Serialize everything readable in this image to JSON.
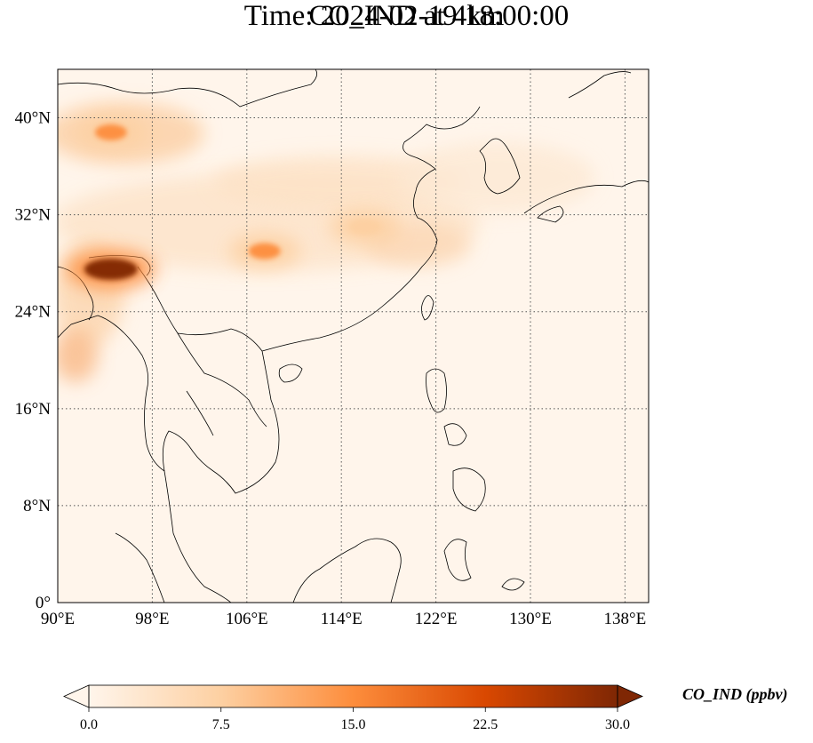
{
  "title_line1": "CO_IND at 4km",
  "title_line2": "Time: 2024-02-19 18:00:00",
  "map": {
    "lon_range": [
      90,
      140
    ],
    "lat_range": [
      0,
      44
    ],
    "lon_ticks": [
      {
        "value": 90,
        "label": "90°E"
      },
      {
        "value": 98,
        "label": "98°E"
      },
      {
        "value": 106,
        "label": "106°E"
      },
      {
        "value": 114,
        "label": "114°E"
      },
      {
        "value": 122,
        "label": "122°E"
      },
      {
        "value": 130,
        "label": "130°E"
      },
      {
        "value": 138,
        "label": "138°E"
      }
    ],
    "lat_ticks": [
      {
        "value": 0,
        "label": "0°"
      },
      {
        "value": 8,
        "label": "8°N"
      },
      {
        "value": 16,
        "label": "16°N"
      },
      {
        "value": 24,
        "label": "24°N"
      },
      {
        "value": 32,
        "label": "32°N"
      },
      {
        "value": 40,
        "label": "40°N"
      }
    ],
    "gridlines": true,
    "colors": {
      "background": "#fff5eb",
      "coastline": "#000000",
      "gridline": "#555555"
    },
    "hotspots": [
      {
        "lon": 94.5,
        "lat": 27.5,
        "level": 30
      },
      {
        "lon": 107.5,
        "lat": 29.0,
        "level": 14
      },
      {
        "lon": 94.5,
        "lat": 38.8,
        "level": 13
      },
      {
        "lon": 116.0,
        "lat": 31.0,
        "level": 7
      }
    ]
  },
  "colorbar": {
    "min": 0.0,
    "max": 30.0,
    "extend": "both",
    "ticks": [
      "0.0",
      "7.5",
      "15.0",
      "22.5",
      "30.0"
    ],
    "label": "CO_IND (ppbv)",
    "colormap": [
      "#fff5eb",
      "#fdd0a2",
      "#fd8d3c",
      "#d94801",
      "#7f2704"
    ]
  }
}
